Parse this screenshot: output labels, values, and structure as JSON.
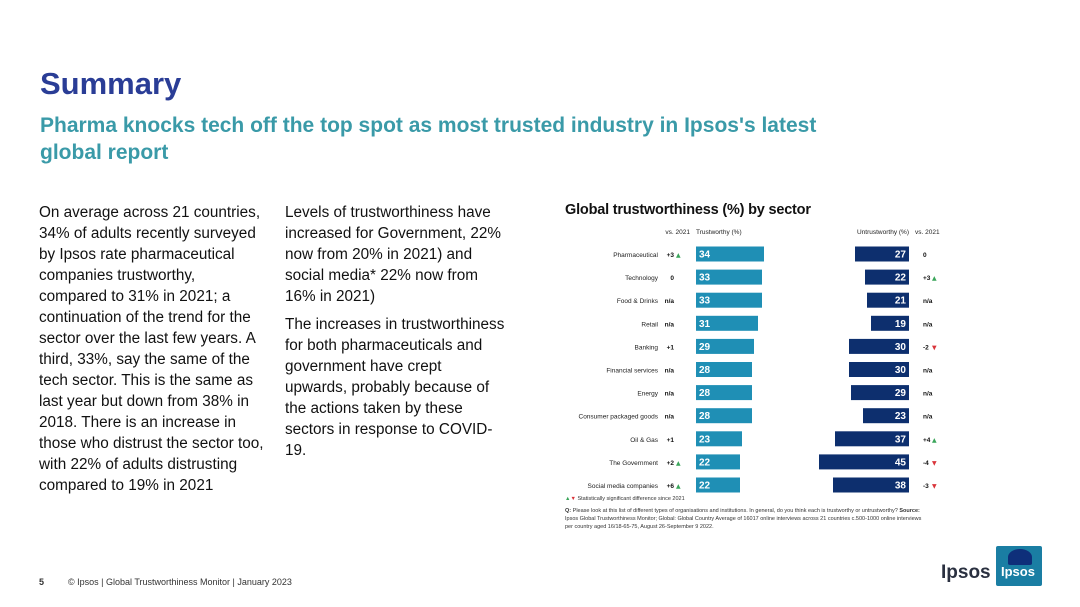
{
  "header": {
    "title": "Summary",
    "subtitle": "Pharma knocks tech off the top spot as most trusted industry in Ipsos's latest global report"
  },
  "body": {
    "col1": "On average across 21 countries, 34% of adults recently surveyed by Ipsos rate pharmaceutical companies trustworthy, compared to 31% in 2021; a continuation of the trend for the sector over the last few years. A third, 33%, say the same of the tech sector. This is the same as last year but down from 38% in 2018. There is an increase in those who distrust the sector too, with 22% of adults distrusting compared to 19% in 2021",
    "col2_p1": "Levels of trustworthiness have increased for Government, 22% now from 20% in 2021) and social media* 22% now from 16% in 2021)",
    "col2_p2": "The increases in trustworthiness for both pharmaceuticals and government have crept upwards, probably because of the actions taken by these sectors in response to COVID-19."
  },
  "chart_data": {
    "type": "bar",
    "title": "Global trustworthiness (%) by sector",
    "column_headers": {
      "trust_change": "vs. 2021",
      "trust": "Trustworthy (%)",
      "untrust": "Untrustworthy (%)",
      "untrust_change": "vs. 2021"
    },
    "categories": [
      "Pharmaceutical",
      "Technology",
      "Food & Drinks",
      "Retail",
      "Banking",
      "Financial services",
      "Energy",
      "Consumer packaged goods",
      "Oil & Gas",
      "The Government",
      "Social media companies"
    ],
    "series": [
      {
        "name": "Trustworthy (%)",
        "values": [
          34,
          33,
          33,
          31,
          29,
          28,
          28,
          28,
          23,
          22,
          22
        ],
        "color": "#1f8fb5"
      },
      {
        "name": "Untrustworthy (%)",
        "values": [
          27,
          22,
          21,
          19,
          30,
          30,
          29,
          23,
          37,
          45,
          38
        ],
        "color": "#0d2f6e"
      }
    ],
    "trust_change": [
      "+3",
      "0",
      "n/a",
      "n/a",
      "+1",
      "n/a",
      "n/a",
      "n/a",
      "+1",
      "+2",
      "+6"
    ],
    "trust_change_dir": [
      "up",
      "",
      "",
      "",
      "",
      "",
      "",
      "",
      "",
      "up",
      "up"
    ],
    "untrust_change": [
      "0",
      "+3",
      "n/a",
      "n/a",
      "-2",
      "n/a",
      "n/a",
      "n/a",
      "+4",
      "-4",
      "-3"
    ],
    "untrust_change_dir": [
      "",
      "up",
      "",
      "",
      "down",
      "",
      "",
      "",
      "up",
      "down",
      "down"
    ],
    "up_color": "#3aa55a",
    "down_color": "#d9343a",
    "legend_note": "Statistically significant difference since 2021",
    "question_label": "Q:",
    "question_text": "Please look at this list of different types of organisations and institutions. In general, do you think each is trustworthy or untrustworthy?",
    "source_label": "Source:",
    "source_text": "Ipsos Global Trustworthiness Monitor; Global: Global Country Average of 16017 online interviews across 21 countries c.500-1000 online interviews per country aged 16/18-65-75, August 26-September 9 2022."
  },
  "footer": {
    "page": "5",
    "copyright": "© Ipsos | Global Trustworthiness Monitor | January 2023",
    "logo_text": "Ipsos",
    "logo_box_text": "Ipsos"
  }
}
